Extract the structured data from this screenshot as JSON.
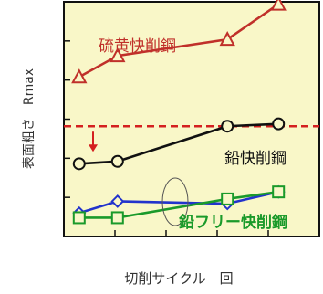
{
  "chart_data": {
    "type": "line",
    "xlabel": "切削サイクル　回",
    "ylabel": "表面粗さ　Rmax",
    "xlim": [
      0,
      10
    ],
    "ylim": [
      0,
      10
    ],
    "grid": false,
    "background": "#f9f7c8",
    "threshold": {
      "value": 4.7,
      "color": "#d42020"
    },
    "series": [
      {
        "name": "硫黄快削鋼",
        "color": "#c0302a",
        "marker": "triangle",
        "x": [
          0.6,
          2.1,
          6.4,
          8.4
        ],
        "y": [
          6.8,
          7.7,
          8.4,
          9.9
        ]
      },
      {
        "name": "鉛快削鋼",
        "color": "#111111",
        "marker": "circle",
        "x": [
          0.6,
          2.1,
          6.4,
          8.4
        ],
        "y": [
          3.1,
          3.2,
          4.7,
          4.8
        ]
      },
      {
        "name": "鉛フリー快削鋼",
        "color": "#1a9a2a",
        "marker": "square",
        "x": [
          0.6,
          2.1,
          6.4,
          8.4
        ],
        "y": [
          0.8,
          0.8,
          1.6,
          1.9
        ]
      },
      {
        "name": "",
        "color": "#2233cc",
        "marker": "diamond",
        "x": [
          0.6,
          2.1,
          6.4,
          8.4
        ],
        "y": [
          1.0,
          1.5,
          1.4,
          1.9
        ]
      }
    ]
  }
}
